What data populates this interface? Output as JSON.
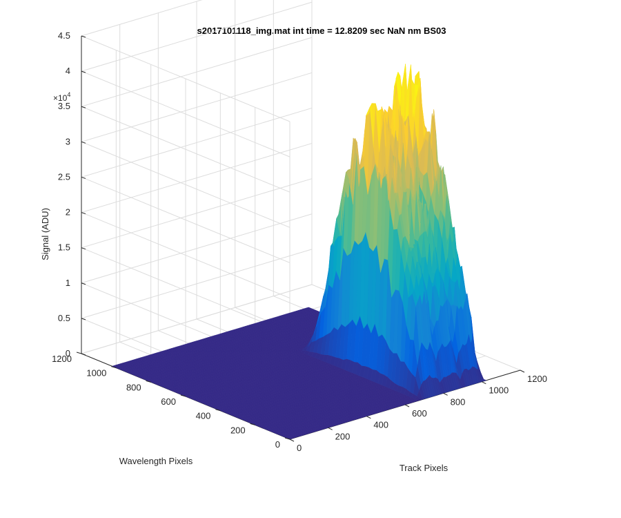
{
  "chart_data": {
    "type": "surface",
    "title": "s2017101118_img.mat int time = 12.8209 sec  NaN nm BS03",
    "xlabel": "Track Pixels",
    "ylabel": "Wavelength Pixels",
    "zlabel": "Signal (ADU)",
    "z_exponent_label": "×10",
    "z_exponent_power": "4",
    "xlim": [
      0,
      1200
    ],
    "ylim": [
      0,
      1200
    ],
    "zlim": [
      0,
      45000
    ],
    "x_ticks": [
      "0",
      "200",
      "400",
      "600",
      "800",
      "1000",
      "1200"
    ],
    "y_ticks": [
      "0",
      "200",
      "400",
      "600",
      "800",
      "1000",
      "1200"
    ],
    "z_ticks": [
      "0",
      "0.5",
      "1",
      "1.5",
      "2",
      "2.5",
      "3",
      "3.5",
      "4",
      "4.5"
    ],
    "grid": true,
    "colormap": [
      "#352a87",
      "#0363e1",
      "#1485d4",
      "#06a7c6",
      "#38b99e",
      "#92bf73",
      "#d9ba56",
      "#fcce2e",
      "#f9fb0e"
    ],
    "surface_extent": {
      "x": [
        0,
        1024
      ],
      "y": [
        0,
        1024
      ]
    },
    "signal_region": {
      "x": [
        670,
        1024
      ],
      "y": [
        5,
        700
      ],
      "background": 0
    },
    "peaks": [
      {
        "track": 750,
        "wavelength": 330,
        "peak_signal": 35000
      },
      {
        "track": 850,
        "wavelength": 350,
        "peak_signal": 35500
      },
      {
        "track": 960,
        "wavelength": 360,
        "peak_signal": 38500
      }
    ]
  }
}
